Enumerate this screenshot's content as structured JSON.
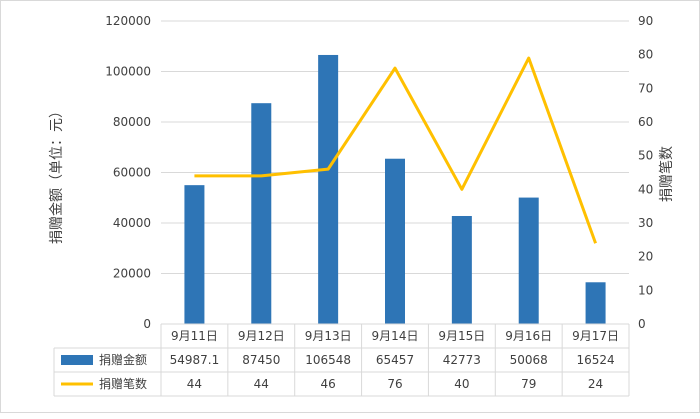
{
  "chart_data": {
    "type": "bar",
    "categories": [
      "9月11日",
      "9月12日",
      "9月13日",
      "9月14日",
      "9月15日",
      "9月16日",
      "9月17日"
    ],
    "series": [
      {
        "name": "捐赠金额",
        "type": "bar",
        "axis": "left",
        "color": "#2e75b6",
        "values": [
          54987.1,
          87450,
          106548,
          65457,
          42773,
          50068,
          16524
        ],
        "labels": [
          "54987.1",
          "87450",
          "106548",
          "65457",
          "42773",
          "50068",
          "16524"
        ]
      },
      {
        "name": "捐赠笔数",
        "type": "line",
        "axis": "right",
        "color": "#ffc000",
        "values": [
          44,
          44,
          46,
          76,
          40,
          79,
          24
        ],
        "labels": [
          "44",
          "44",
          "46",
          "76",
          "40",
          "79",
          "24"
        ]
      }
    ],
    "ylabel": "捐赠金额（单位：元）",
    "y2label": "捐赠笔数",
    "ylim": [
      0,
      120000
    ],
    "y2lim": [
      0,
      90
    ],
    "yticks": [
      "0",
      "20000",
      "40000",
      "60000",
      "80000",
      "100000",
      "120000"
    ],
    "y2ticks": [
      "0",
      "10",
      "20",
      "30",
      "40",
      "50",
      "60",
      "70",
      "80",
      "90"
    ],
    "grid": true,
    "legend": "data-table"
  }
}
